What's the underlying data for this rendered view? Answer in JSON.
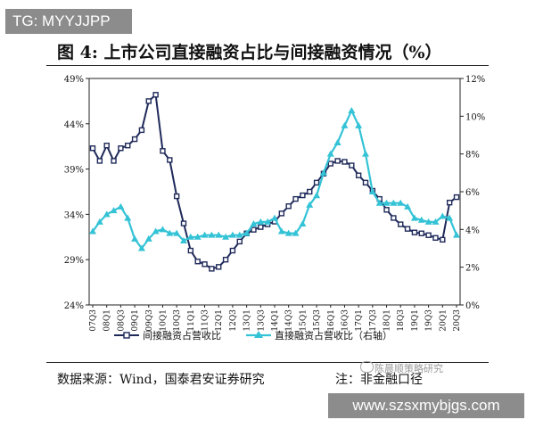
{
  "top_tag": "TG: MYYJJPP",
  "figure_title": "图 4:  上市公司直接融资占比与间接融资情况（%）",
  "source_text": "数据来源：Wind，国泰君安证券研究",
  "note_text": "注：非金融口径",
  "watermark": "陈晨顺策略研究",
  "bottom_url": "www.szsxmybjgs.com",
  "colors": {
    "indirect": "#1f2a5a",
    "direct": "#34c3d6",
    "tag_bg": "#8c8c8c"
  },
  "chart_data": {
    "type": "line",
    "categories": [
      "07Q3",
      "07Q4",
      "08Q1",
      "08Q2",
      "08Q3",
      "08Q4",
      "09Q1",
      "09Q2",
      "09Q3",
      "09Q4",
      "10Q1",
      "10Q2",
      "10Q3",
      "10Q4",
      "11Q1",
      "11Q2",
      "11Q3",
      "11Q4",
      "12Q1",
      "12Q2",
      "12Q3",
      "12Q4",
      "13Q1",
      "13Q2",
      "13Q3",
      "13Q4",
      "14Q1",
      "14Q2",
      "14Q3",
      "14Q4",
      "15Q1",
      "15Q2",
      "15Q3",
      "15Q4",
      "16Q1",
      "16Q2",
      "16Q3",
      "16Q4",
      "17Q1",
      "17Q2",
      "17Q3",
      "17Q4",
      "18Q1",
      "18Q2",
      "18Q3",
      "18Q4",
      "19Q1",
      "19Q2",
      "19Q3",
      "19Q4",
      "20Q1",
      "20Q2",
      "20Q3"
    ],
    "x_tick_labels": [
      "07Q3",
      "08Q1",
      "08Q3",
      "09Q1",
      "09Q3",
      "10Q1",
      "10Q3",
      "11Q1",
      "11Q3",
      "12Q1",
      "12Q3",
      "13Q1",
      "13Q3",
      "14Q1",
      "14Q3",
      "15Q1",
      "15Q3",
      "16Q1",
      "16Q3",
      "17Q1",
      "17Q3",
      "18Q1",
      "18Q3",
      "19Q1",
      "19Q3",
      "20Q1",
      "20Q3"
    ],
    "left_axis": {
      "ylim": [
        24,
        49
      ],
      "ticks": [
        "24%",
        "29%",
        "34%",
        "39%",
        "44%",
        "49%"
      ]
    },
    "right_axis": {
      "ylim": [
        0,
        12
      ],
      "ticks": [
        "0%",
        "2%",
        "4%",
        "6%",
        "8%",
        "10%",
        "12%"
      ]
    },
    "series": [
      {
        "name": "间接融资占营收比",
        "axis": "left",
        "marker": "square",
        "values": [
          41.3,
          39.9,
          41.6,
          39.9,
          41.3,
          41.6,
          42.3,
          43.3,
          46.5,
          47.2,
          41.0,
          40.0,
          36.0,
          33.0,
          30.0,
          28.8,
          28.5,
          28.0,
          28.2,
          29.0,
          30.0,
          31.0,
          31.9,
          32.3,
          32.6,
          32.9,
          33.2,
          34.1,
          34.9,
          35.7,
          36.1,
          36.5,
          37.5,
          38.5,
          39.6,
          39.9,
          39.8,
          39.4,
          38.3,
          37.5,
          36.6,
          35.7,
          34.5,
          33.6,
          32.9,
          32.4,
          32.0,
          31.9,
          31.7,
          31.4,
          31.2,
          35.3,
          35.9
        ]
      },
      {
        "name": "直接融资占营收比（右轴）",
        "axis": "right",
        "marker": "triangle",
        "values": [
          3.9,
          4.4,
          4.8,
          5.0,
          5.2,
          4.6,
          3.5,
          3.0,
          3.5,
          3.9,
          4.0,
          3.8,
          3.8,
          3.4,
          3.6,
          3.6,
          3.7,
          3.7,
          3.7,
          3.6,
          3.7,
          3.7,
          3.8,
          4.3,
          4.4,
          4.4,
          4.6,
          3.9,
          3.8,
          3.8,
          4.3,
          5.3,
          5.8,
          7.0,
          8.0,
          8.6,
          9.5,
          10.3,
          9.5,
          8.0,
          6.0,
          5.4,
          5.4,
          5.4,
          5.4,
          5.2,
          4.6,
          4.5,
          4.4,
          4.4,
          4.7,
          4.6,
          3.7
        ]
      }
    ]
  }
}
